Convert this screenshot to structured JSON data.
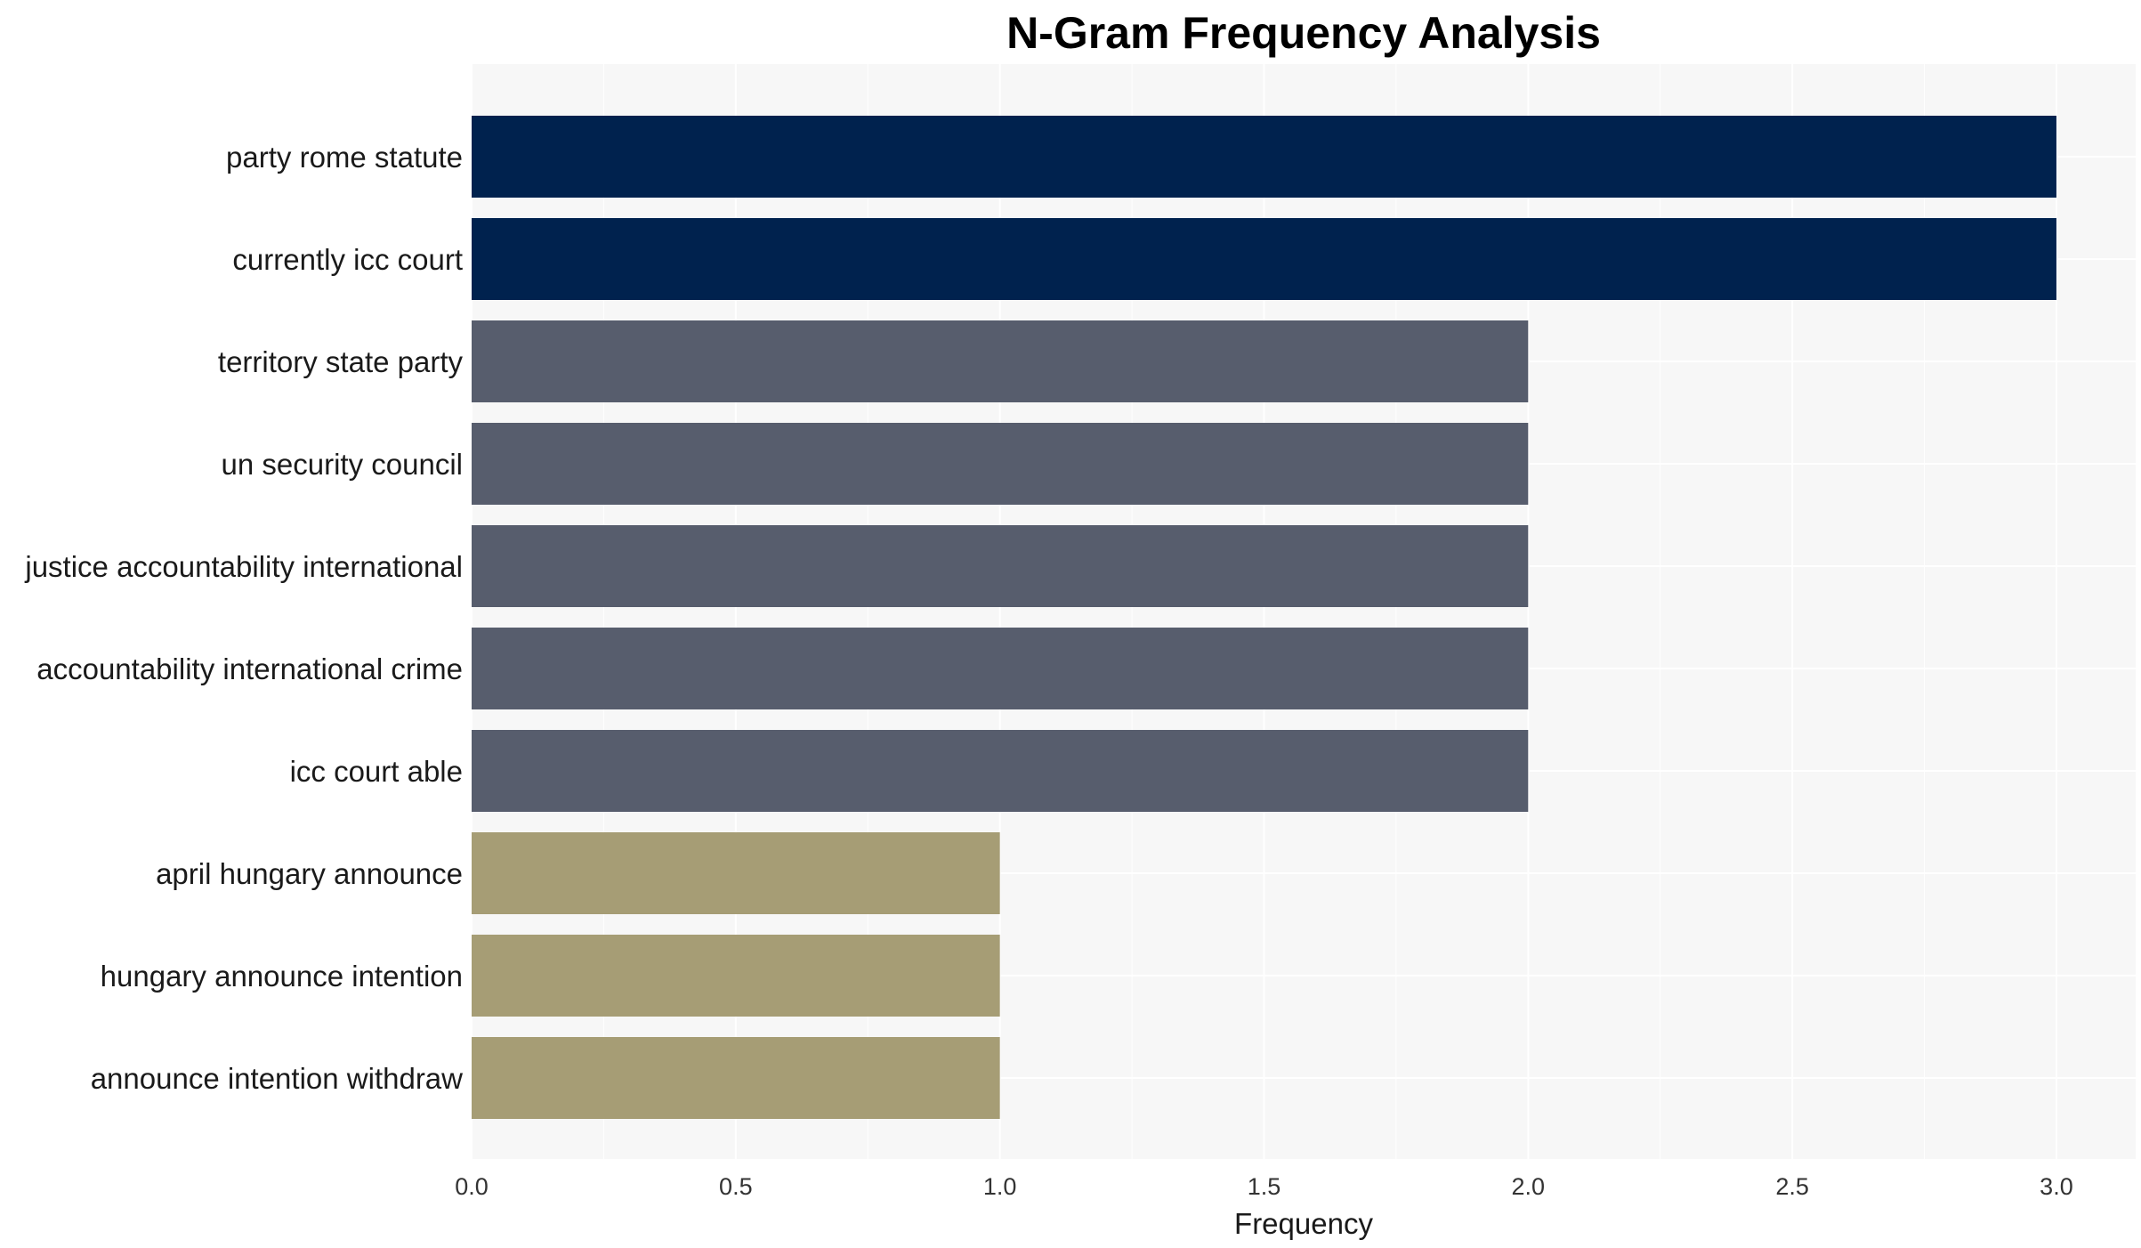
{
  "chart_data": {
    "type": "bar",
    "orientation": "horizontal",
    "title": "N-Gram Frequency Analysis",
    "xlabel": "Frequency",
    "ylabel": "",
    "xlim": [
      0,
      3.15
    ],
    "x_ticks": [
      0,
      0.5,
      1,
      1.5,
      2,
      2.5,
      3
    ],
    "x_tick_labels": [
      "0.0",
      "0.5",
      "1.0",
      "1.5",
      "2.0",
      "2.5",
      "3.0"
    ],
    "grid": true,
    "background": "#f7f7f7",
    "categories": [
      "party rome statute",
      "currently icc court",
      "territory state party",
      "un security council",
      "justice accountability international",
      "accountability international crime",
      "icc court able",
      "april hungary announce",
      "hungary announce intention",
      "announce intention withdraw"
    ],
    "values": [
      3,
      3,
      2,
      2,
      2,
      2,
      2,
      1,
      1,
      1
    ],
    "colors": {
      "3": "#00224e",
      "2": "#575d6d",
      "1": "#a69d75"
    }
  }
}
